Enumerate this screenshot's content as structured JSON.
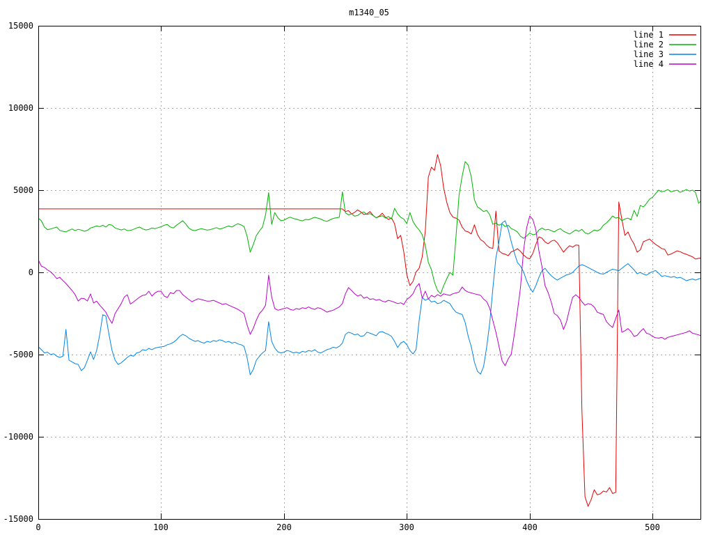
{
  "title": "m1340_05",
  "colors": {
    "border": "#000000",
    "grid": "#a8a8a8",
    "background": "#ffffff",
    "line1": "#e60000",
    "line2": "#00b400",
    "line3": "#0084e8",
    "line4": "#bc00cc"
  },
  "axes": {
    "x_range": [
      0,
      539
    ],
    "y_range": [
      -15000,
      15000
    ],
    "x_ticks": [
      0,
      100,
      200,
      300,
      400,
      500
    ],
    "y_ticks": [
      -15000,
      -10000,
      -5000,
      0,
      5000,
      10000,
      15000
    ],
    "grid": true
  },
  "legend": {
    "position": "top-right",
    "entries": [
      {
        "label": "line 1",
        "color": "#e60000"
      },
      {
        "label": "line 2",
        "color": "#00b400"
      },
      {
        "label": "line 3",
        "color": "#0084e8"
      },
      {
        "label": "line 4",
        "color": "#bc00cc"
      }
    ]
  },
  "chart_data": {
    "type": "line",
    "title": "m1340_05",
    "xlabel": "",
    "ylabel": "",
    "xlim": [
      0,
      539
    ],
    "ylim": [
      -15000,
      15000
    ],
    "legend_position": "top-right",
    "grid": true,
    "x_start": 0,
    "x_step": 2.5,
    "series": [
      {
        "name": "line 1",
        "color": "#e60000",
        "y": [
          3860,
          3860,
          3860,
          3860,
          3860,
          3860,
          3860,
          3860,
          3860,
          3860,
          3860,
          3860,
          3860,
          3860,
          3860,
          3860,
          3860,
          3860,
          3860,
          3860,
          3860,
          3860,
          3860,
          3860,
          3860,
          3860,
          3860,
          3860,
          3860,
          3860,
          3860,
          3860,
          3860,
          3860,
          3860,
          3860,
          3860,
          3860,
          3860,
          3860,
          3860,
          3860,
          3860,
          3860,
          3860,
          3860,
          3860,
          3860,
          3860,
          3860,
          3860,
          3860,
          3860,
          3860,
          3860,
          3860,
          3860,
          3860,
          3860,
          3860,
          3860,
          3860,
          3860,
          3860,
          3860,
          3860,
          3860,
          3860,
          3860,
          3860,
          3860,
          3860,
          3860,
          3860,
          3860,
          3860,
          3860,
          3860,
          3860,
          3860,
          3860,
          3860,
          3860,
          3860,
          3860,
          3860,
          3860,
          3860,
          3860,
          3860,
          3860,
          3860,
          3860,
          3860,
          3860,
          3860,
          3860,
          3860,
          3860,
          3860,
          3700,
          3760,
          3550,
          3650,
          3800,
          3680,
          3520,
          3560,
          3700,
          3470,
          3320,
          3420,
          3600,
          3360,
          3220,
          3310,
          2950,
          2050,
          2250,
          1250,
          -150,
          -800,
          -550,
          20,
          260,
          950,
          2500,
          5800,
          6400,
          6200,
          7160,
          6500,
          5130,
          4250,
          3640,
          3360,
          3300,
          3180,
          2760,
          2520,
          2460,
          2340,
          2900,
          2300,
          1990,
          1870,
          1650,
          1500,
          1460,
          3730,
          1310,
          1160,
          1100,
          1020,
          1250,
          1320,
          1440,
          1280,
          1060,
          900,
          820,
          1150,
          1700,
          2160,
          2080,
          1850,
          1740,
          1900,
          1960,
          1800,
          1520,
          1230,
          1450,
          1620,
          1540,
          1660,
          1650,
          -8350,
          -13640,
          -14230,
          -13820,
          -13220,
          -13530,
          -13470,
          -13300,
          -13360,
          -13090,
          -13450,
          -13380,
          4280,
          3220,
          2250,
          2460,
          2030,
          1720,
          1230,
          1360,
          1870,
          1940,
          2030,
          1860,
          1700,
          1580,
          1450,
          1400,
          1050,
          1120,
          1210,
          1310,
          1260,
          1160,
          1100,
          1020,
          950,
          810,
          850,
          890
        ]
      },
      {
        "name": "line 2",
        "color": "#00b400",
        "y": [
          3300,
          3140,
          2760,
          2600,
          2640,
          2700,
          2760,
          2550,
          2500,
          2460,
          2560,
          2640,
          2540,
          2620,
          2570,
          2500,
          2560,
          2700,
          2760,
          2820,
          2780,
          2870,
          2760,
          2910,
          2870,
          2700,
          2640,
          2580,
          2640,
          2540,
          2550,
          2620,
          2700,
          2760,
          2640,
          2580,
          2620,
          2700,
          2660,
          2720,
          2780,
          2870,
          2910,
          2760,
          2700,
          2870,
          3000,
          3140,
          2950,
          2700,
          2580,
          2540,
          2600,
          2660,
          2620,
          2570,
          2600,
          2660,
          2720,
          2640,
          2680,
          2760,
          2820,
          2760,
          2870,
          2960,
          2890,
          2790,
          2200,
          1230,
          1700,
          2240,
          2520,
          2760,
          3500,
          4850,
          2920,
          3640,
          3320,
          3140,
          3180,
          3280,
          3360,
          3280,
          3240,
          3180,
          3130,
          3220,
          3200,
          3280,
          3350,
          3300,
          3240,
          3150,
          3100,
          3200,
          3280,
          3320,
          3350,
          4900,
          3620,
          3500,
          3560,
          3420,
          3460,
          3600,
          3680,
          3520,
          3570,
          3460,
          3320,
          3390,
          3450,
          3310,
          3400,
          3250,
          3900,
          3560,
          3350,
          3240,
          2960,
          3640,
          3100,
          2800,
          2580,
          2290,
          1650,
          600,
          170,
          -600,
          -1100,
          -1310,
          -800,
          -380,
          0,
          -170,
          2160,
          4700,
          5840,
          6740,
          6520,
          5800,
          4410,
          3980,
          3850,
          3700,
          3770,
          3500,
          2920,
          3000,
          2870,
          2960,
          2790,
          2870,
          2660,
          2580,
          2460,
          2200,
          2070,
          2210,
          2400,
          2290,
          2330,
          2580,
          2700,
          2580,
          2620,
          2540,
          2460,
          2580,
          2660,
          2500,
          2420,
          2330,
          2460,
          2580,
          2500,
          2620,
          2410,
          2330,
          2450,
          2580,
          2520,
          2620,
          2870,
          3010,
          3200,
          3430,
          3300,
          3350,
          3140,
          3250,
          3300,
          3200,
          3770,
          3400,
          4070,
          3980,
          4190,
          4450,
          4580,
          4790,
          5000,
          4900,
          4950,
          5040,
          4900,
          4950,
          5000,
          4870,
          4950,
          5040,
          4950,
          5000,
          4870,
          4200,
          4400
        ]
      },
      {
        "name": "line 3",
        "color": "#0084e8",
        "y": [
          -4530,
          -4700,
          -4900,
          -4850,
          -5000,
          -4950,
          -5100,
          -5170,
          -5100,
          -3470,
          -5340,
          -5450,
          -5550,
          -5600,
          -5975,
          -5800,
          -5340,
          -4830,
          -5300,
          -4750,
          -3800,
          -2580,
          -2650,
          -3770,
          -4750,
          -5340,
          -5600,
          -5500,
          -5340,
          -5170,
          -5040,
          -5100,
          -4900,
          -4850,
          -4700,
          -4750,
          -4620,
          -4700,
          -4600,
          -4560,
          -4530,
          -4500,
          -4400,
          -4350,
          -4250,
          -4100,
          -3900,
          -3770,
          -3850,
          -4000,
          -4100,
          -4200,
          -4150,
          -4250,
          -4300,
          -4200,
          -4250,
          -4150,
          -4200,
          -4100,
          -4150,
          -4250,
          -4200,
          -4300,
          -4250,
          -4350,
          -4400,
          -4500,
          -5200,
          -6230,
          -5900,
          -5340,
          -5100,
          -4900,
          -4750,
          -3000,
          -4200,
          -4600,
          -4830,
          -4900,
          -4850,
          -4750,
          -4800,
          -4900,
          -4850,
          -4920,
          -4800,
          -4850,
          -4750,
          -4800,
          -4700,
          -4850,
          -4900,
          -4800,
          -4700,
          -4650,
          -4550,
          -4600,
          -4500,
          -4300,
          -3770,
          -3640,
          -3700,
          -3800,
          -3750,
          -3900,
          -3850,
          -3640,
          -3700,
          -3770,
          -3850,
          -3640,
          -3600,
          -3700,
          -3770,
          -3900,
          -4200,
          -4570,
          -4300,
          -4200,
          -4400,
          -4750,
          -4960,
          -4700,
          -2920,
          -1525,
          -1700,
          -1600,
          -1800,
          -1750,
          -1900,
          -1850,
          -1700,
          -1800,
          -1900,
          -2200,
          -2420,
          -2500,
          -2560,
          -3050,
          -3900,
          -4530,
          -5470,
          -6020,
          -6190,
          -5720,
          -4530,
          -3050,
          -1000,
          890,
          1820,
          3010,
          3140,
          2620,
          1860,
          1190,
          600,
          380,
          40,
          -510,
          -930,
          -1200,
          -800,
          -300,
          100,
          250,
          0,
          -200,
          -350,
          -470,
          -350,
          -250,
          -150,
          -100,
          0,
          200,
          380,
          470,
          400,
          300,
          200,
          100,
          0,
          -80,
          -100,
          0,
          100,
          200,
          150,
          100,
          250,
          400,
          530,
          340,
          150,
          -80,
          0,
          -100,
          -170,
          -50,
          50,
          110,
          -50,
          -250,
          -200,
          -250,
          -300,
          -250,
          -340,
          -300,
          -400,
          -510,
          -450,
          -400,
          -470,
          -400,
          -340
        ]
      },
      {
        "name": "line 4",
        "color": "#bc00cc",
        "y": [
          760,
          380,
          300,
          150,
          40,
          -150,
          -380,
          -300,
          -500,
          -680,
          -890,
          -1100,
          -1360,
          -1740,
          -1570,
          -1600,
          -1740,
          -1310,
          -1860,
          -1750,
          -2000,
          -2200,
          -2420,
          -2800,
          -3100,
          -2500,
          -2200,
          -1900,
          -1500,
          -1360,
          -1930,
          -1800,
          -1650,
          -1500,
          -1400,
          -1360,
          -1150,
          -1440,
          -1250,
          -1150,
          -1150,
          -1440,
          -1530,
          -1230,
          -1300,
          -1100,
          -1100,
          -1350,
          -1500,
          -1650,
          -1780,
          -1700,
          -1600,
          -1650,
          -1700,
          -1750,
          -1740,
          -1700,
          -1780,
          -1860,
          -1950,
          -1900,
          -2000,
          -2080,
          -2160,
          -2250,
          -2370,
          -2500,
          -3200,
          -3770,
          -3400,
          -2900,
          -2500,
          -2300,
          -2000,
          -170,
          -1500,
          -2200,
          -2300,
          -2250,
          -2200,
          -2150,
          -2250,
          -2300,
          -2200,
          -2250,
          -2150,
          -2200,
          -2100,
          -2200,
          -2250,
          -2150,
          -2200,
          -2300,
          -2420,
          -2350,
          -2300,
          -2200,
          -2100,
          -1900,
          -1300,
          -930,
          -1100,
          -1300,
          -1440,
          -1360,
          -1570,
          -1500,
          -1650,
          -1600,
          -1700,
          -1650,
          -1750,
          -1800,
          -1700,
          -1750,
          -1820,
          -1900,
          -1850,
          -1950,
          -1650,
          -1500,
          -1300,
          -900,
          -680,
          -1570,
          -1140,
          -1630,
          -1400,
          -1500,
          -1350,
          -1450,
          -1300,
          -1360,
          -1400,
          -1300,
          -1250,
          -1200,
          -890,
          -1100,
          -1200,
          -1250,
          -1300,
          -1350,
          -1400,
          -1630,
          -1780,
          -2200,
          -2920,
          -3640,
          -4490,
          -5380,
          -5680,
          -5260,
          -4960,
          -3770,
          -2370,
          -930,
          1310,
          2700,
          3430,
          3220,
          2580,
          1310,
          340,
          -805,
          -1230,
          -1800,
          -2500,
          -2630,
          -2900,
          -3470,
          -3000,
          -2200,
          -1520,
          -1360,
          -1520,
          -1780,
          -2000,
          -1900,
          -1950,
          -2100,
          -2420,
          -2500,
          -2560,
          -3000,
          -3200,
          -3350,
          -2800,
          -2290,
          -3640,
          -3550,
          -3420,
          -3600,
          -3900,
          -3830,
          -3600,
          -3420,
          -3700,
          -3760,
          -3900,
          -3980,
          -4000,
          -3950,
          -4070,
          -3950,
          -3900,
          -3850,
          -3800,
          -3750,
          -3700,
          -3650,
          -3550,
          -3700,
          -3750,
          -3800,
          -3870
        ]
      }
    ]
  }
}
